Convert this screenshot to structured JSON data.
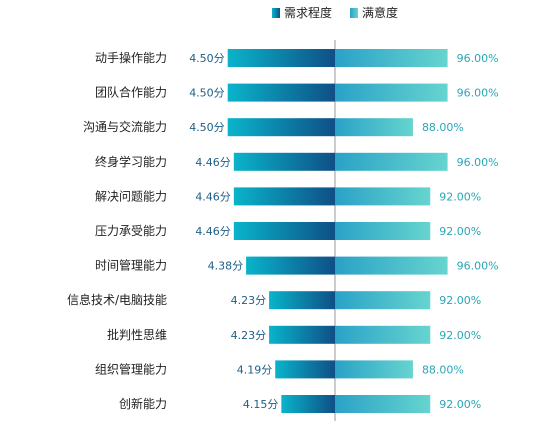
{
  "chart_data": {
    "type": "bar",
    "categories": [
      "动手操作能力",
      "团队合作能力",
      "沟通与交流能力",
      "终身学习能力",
      "解决问题能力",
      "压力承受能力",
      "时间管理能力",
      "信息技术/电脑技能",
      "批判性思维",
      "组织管理能力",
      "创新能力"
    ],
    "series": [
      {
        "name": "需求程度",
        "values": [
          4.5,
          4.5,
          4.5,
          4.46,
          4.46,
          4.46,
          4.38,
          4.23,
          4.23,
          4.19,
          4.15
        ],
        "labels": [
          "4.50分",
          "4.50分",
          "4.50分",
          "4.46分",
          "4.46分",
          "4.46分",
          "4.38分",
          "4.23分",
          "4.23分",
          "4.19分",
          "4.15分"
        ],
        "color_start": "#09b4cb",
        "color_end": "#0f4f86",
        "direction": "left"
      },
      {
        "name": "满意度",
        "values": [
          96,
          96,
          88,
          96,
          92,
          92,
          96,
          92,
          92,
          88,
          92
        ],
        "labels": [
          "96.00%",
          "96.00%",
          "88.00%",
          "96.00%",
          "92.00%",
          "92.00%",
          "96.00%",
          "92.00%",
          "92.00%",
          "88.00%",
          "92.00%"
        ],
        "color_start": "#2aa2c7",
        "color_end": "#66d4cf",
        "direction": "right"
      }
    ],
    "legend_position": "top-center",
    "grid": false
  }
}
